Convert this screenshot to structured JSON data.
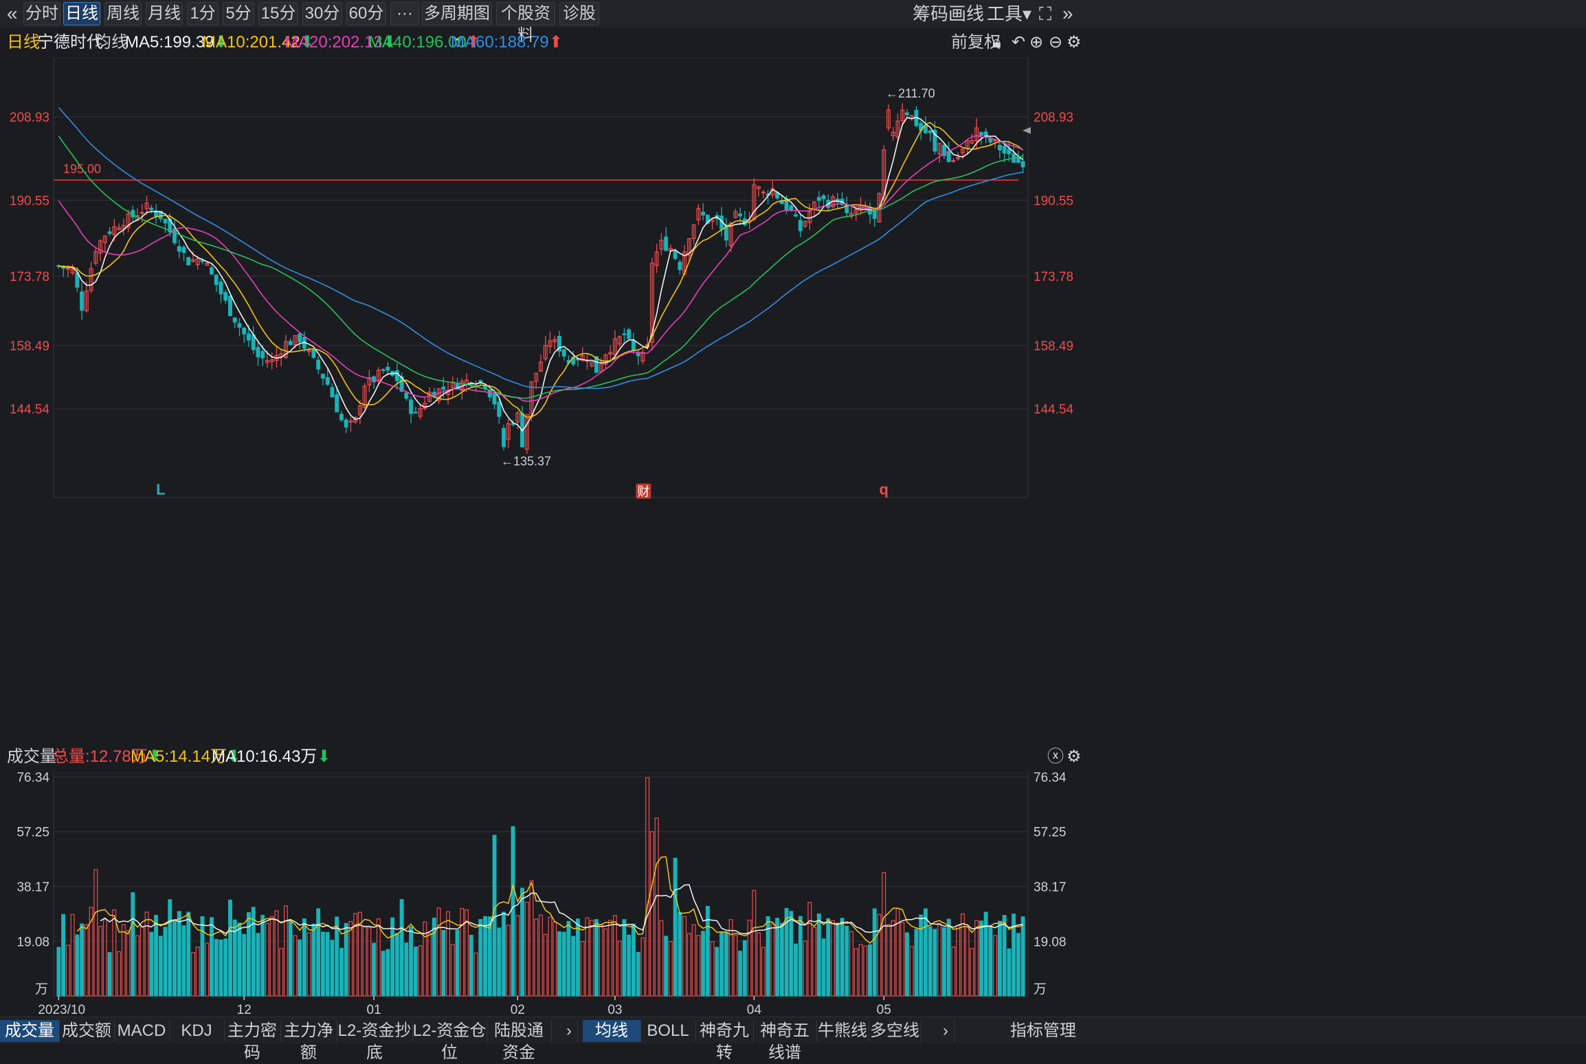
{
  "toolbar": {
    "back_icon": "double-chevron-left-icon",
    "periods": [
      "分时",
      "日线",
      "周线",
      "月线",
      "1分",
      "5分",
      "15分",
      "30分",
      "60分"
    ],
    "active_period": "日线",
    "more_label": "···",
    "multi_period": "多周期图",
    "stock_info": "个股资料",
    "diagnose": "诊股",
    "right": [
      "筹码",
      "画线",
      "工具"
    ]
  },
  "infobar": {
    "period": "日线",
    "stock_name": "宁德时代",
    "ma_label": "均线",
    "ma5": "MA5:199.39",
    "ma10": "MA10:201.42",
    "ma20": "MA20:202.13",
    "ma40": "MA40:196.00",
    "ma60": "MA60:188.79",
    "adjust": "前复权"
  },
  "colors": {
    "up": "#ef4d4d",
    "down": "#19b3b8",
    "ma5": "#f2f2f2",
    "ma10": "#f7c410",
    "ma20": "#e640b8",
    "ma40": "#25c25c",
    "ma60": "#2f8ee8",
    "hline": "#e0393b",
    "axis_text": "#ef4d4d"
  },
  "volbar": {
    "label": "成交量",
    "total": "总量:12.78万",
    "ma5": "MA5:14.14万",
    "ma10": "MA10:16.43万"
  },
  "bottom_tabs_left": [
    "成交量",
    "成交额",
    "MACD",
    "KDJ",
    "主力密码",
    "主力净额",
    "L2-资金抄底",
    "L2-资金仓位",
    "陆股通资金"
  ],
  "bottom_tabs_right": [
    "均线",
    "BOLL",
    "神奇九转",
    "神奇五线谱",
    "牛熊线",
    "多空线"
  ],
  "indicator_manage": "指标管理",
  "chart_data": [
    {
      "type": "candlestick",
      "title": "宁德时代 日线",
      "ylim": [
        125,
        222
      ],
      "y_ticks": [
        144.54,
        158.49,
        173.78,
        190.55,
        208.93
      ],
      "x_ticks": [
        "2023/10",
        "12",
        "01",
        "02",
        "03",
        "04",
        "05"
      ],
      "x_tick_index": [
        0,
        40,
        68,
        99,
        120,
        150,
        178
      ],
      "horizontal_line": {
        "value": 195.0,
        "label": "195.00"
      },
      "annotations": [
        {
          "text": "←211.70",
          "index": 179,
          "value": 211.7
        },
        {
          "text": "←135.37",
          "index": 96,
          "value": 135.37
        }
      ],
      "markers": [
        {
          "text": "L",
          "index": 22
        },
        {
          "text": "财",
          "index": 126
        },
        {
          "text": "q",
          "index": 178
        }
      ],
      "candles": [],
      "ma_series": [
        {
          "name": "MA5",
          "period": 5
        },
        {
          "name": "MA10",
          "period": 10
        },
        {
          "name": "MA20",
          "period": 20
        },
        {
          "name": "MA40",
          "period": 40
        },
        {
          "name": "MA60",
          "period": 60
        }
      ],
      "ma60_start": 213.5,
      "ma40_start": 207.0,
      "ma20_start": 192.0
    },
    {
      "type": "bar",
      "title": "成交量",
      "unit": "万",
      "ylim": [
        0,
        78
      ],
      "y_ticks": [
        19.08,
        38.17,
        57.25,
        76.34
      ],
      "volumes": []
    }
  ]
}
